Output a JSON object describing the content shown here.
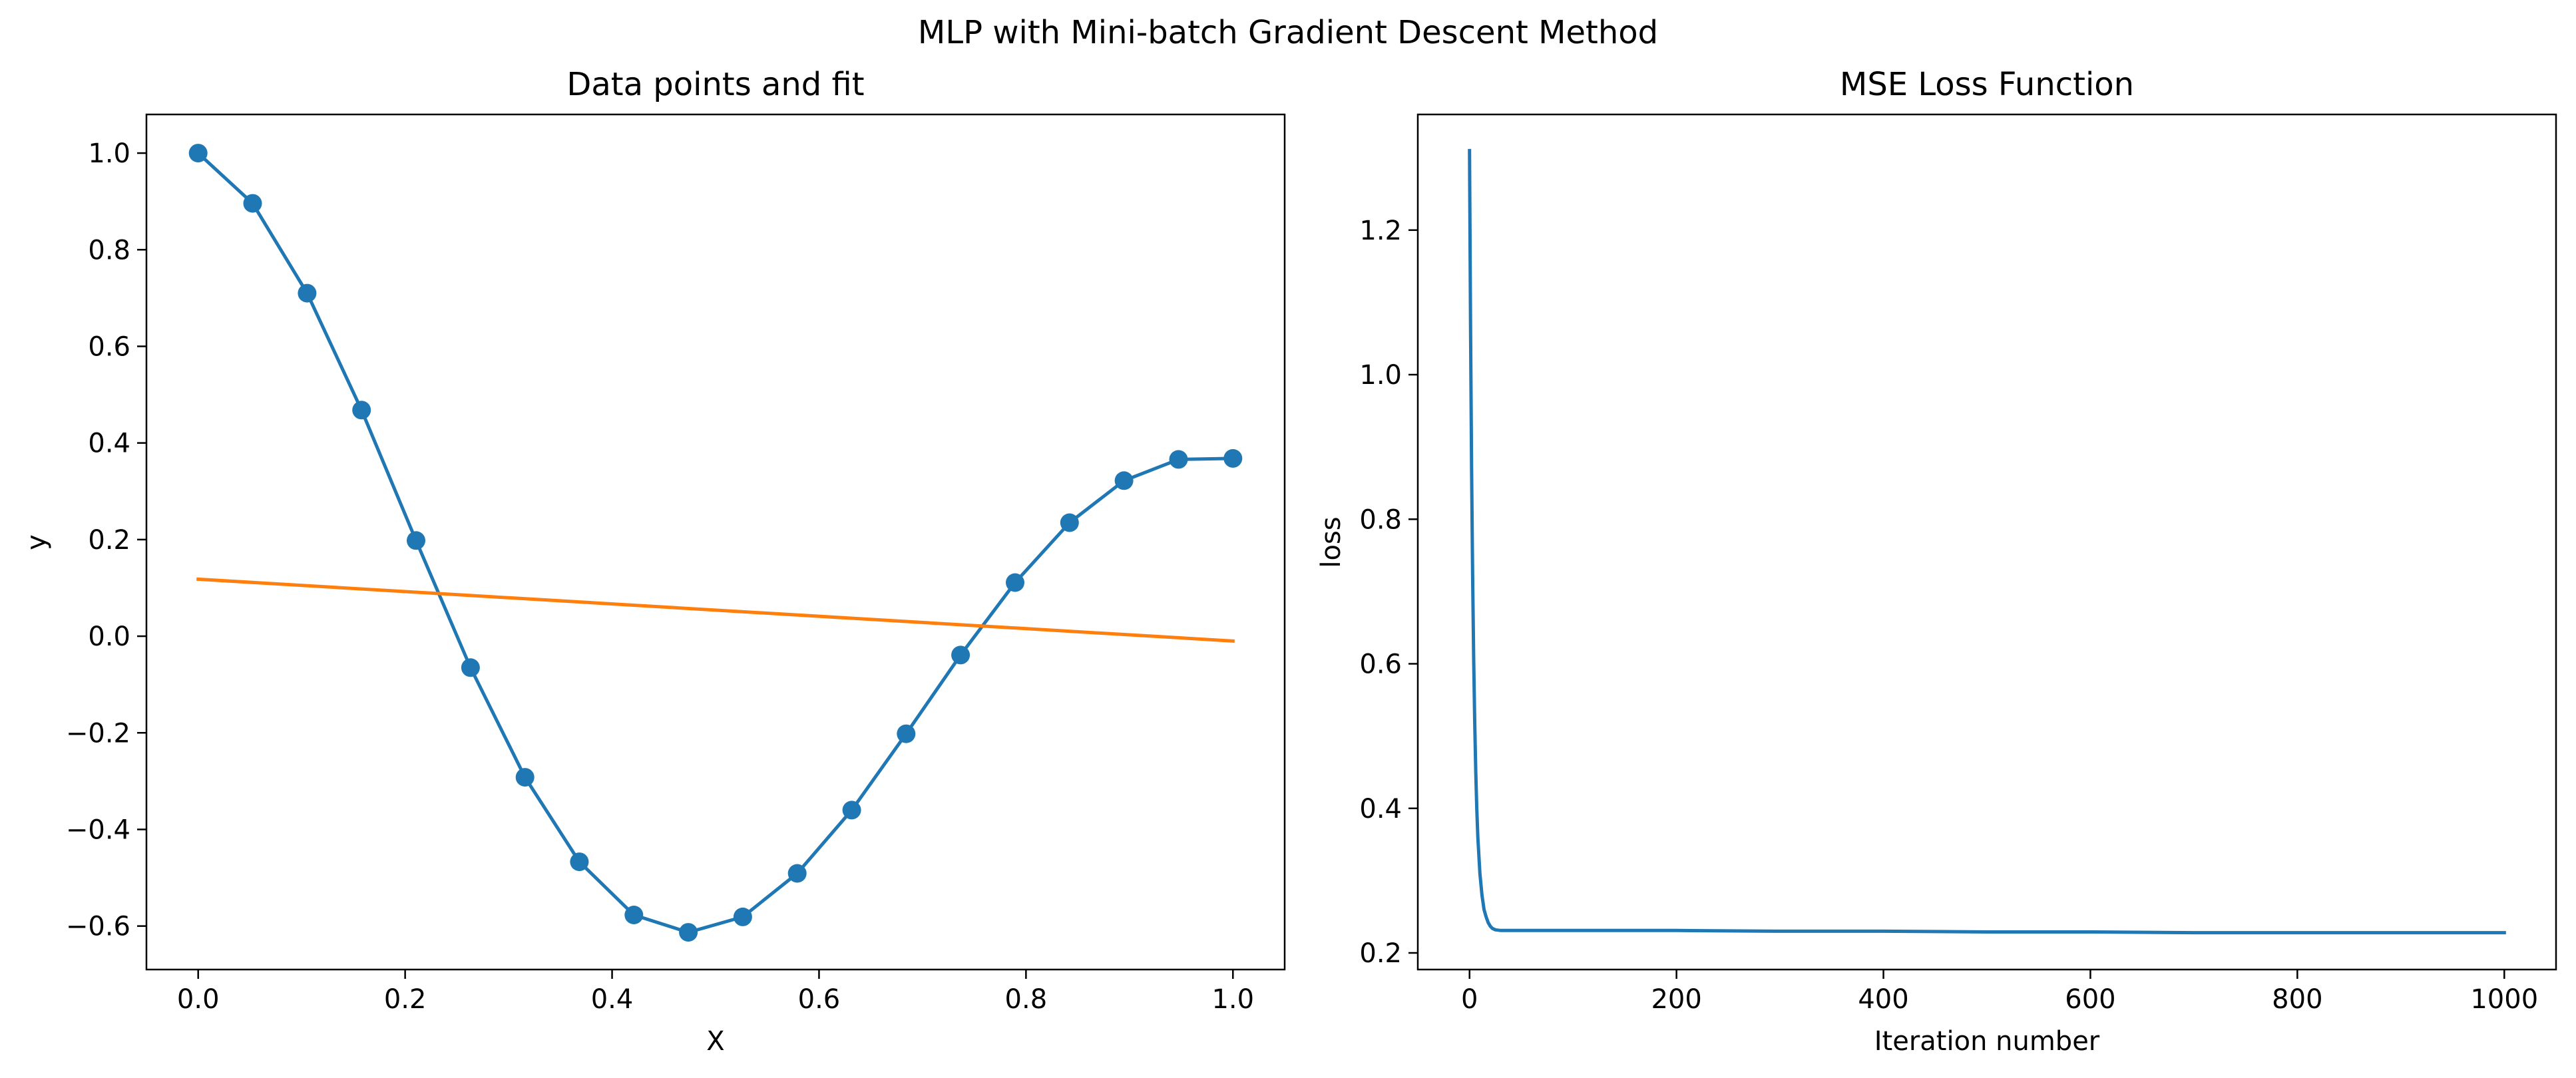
{
  "figure": {
    "suptitle": "MLP with Mini-batch Gradient Descent Method"
  },
  "chart_data": [
    {
      "type": "line",
      "title": "Data points and fit",
      "xlabel": "X",
      "ylabel": "y",
      "xlim": [
        -0.05,
        1.05
      ],
      "ylim": [
        -0.69,
        1.08
      ],
      "xticks": [
        0.0,
        0.2,
        0.4,
        0.6,
        0.8,
        1.0
      ],
      "xtick_labels": [
        "0.0",
        "0.2",
        "0.4",
        "0.6",
        "0.8",
        "1.0"
      ],
      "yticks": [
        -0.6,
        -0.4,
        -0.2,
        0.0,
        0.2,
        0.4,
        0.6,
        0.8,
        1.0
      ],
      "ytick_labels": [
        "−0.6",
        "−0.4",
        "−0.2",
        "0.0",
        "0.2",
        "0.4",
        "0.6",
        "0.8",
        "1.0"
      ],
      "grid": false,
      "series": [
        {
          "color": "#1f77b4",
          "marker": "circle",
          "x": [
            0.0,
            0.0526,
            0.1053,
            0.1579,
            0.2105,
            0.2632,
            0.3158,
            0.3684,
            0.4211,
            0.4737,
            0.5263,
            0.5789,
            0.6316,
            0.6842,
            0.7368,
            0.7895,
            0.8421,
            0.8947,
            0.9474,
            1.0
          ],
          "y": [
            1.0,
            0.896,
            0.71,
            0.468,
            0.198,
            -0.065,
            -0.292,
            -0.467,
            -0.577,
            -0.613,
            -0.581,
            -0.491,
            -0.36,
            -0.202,
            -0.039,
            0.111,
            0.235,
            0.322,
            0.366,
            0.368
          ]
        },
        {
          "color": "#ff7f0e",
          "marker": "none",
          "x": [
            0.0,
            1.0
          ],
          "y": [
            0.118,
            -0.01
          ]
        }
      ]
    },
    {
      "type": "line",
      "title": "MSE Loss Function",
      "xlabel": "Iteration number",
      "ylabel": "loss",
      "xlim": [
        -50,
        1050
      ],
      "ylim": [
        0.177,
        1.36
      ],
      "xticks": [
        0,
        200,
        400,
        600,
        800,
        1000
      ],
      "xtick_labels": [
        "0",
        "200",
        "400",
        "600",
        "800",
        "1000"
      ],
      "yticks": [
        0.2,
        0.4,
        0.6,
        0.8,
        1.0,
        1.2
      ],
      "ytick_labels": [
        "0.2",
        "0.4",
        "0.6",
        "0.8",
        "1.0",
        "1.2"
      ],
      "grid": false,
      "series": [
        {
          "color": "#1f77b4",
          "marker": "none",
          "x": [
            0,
            1,
            2,
            3,
            4,
            5,
            6,
            7,
            8,
            10,
            12,
            14,
            16,
            18,
            20,
            22,
            25,
            30,
            40,
            60,
            100,
            200,
            300,
            400,
            500,
            600,
            700,
            800,
            900,
            1000
          ],
          "y": [
            1.31,
            1.06,
            0.87,
            0.72,
            0.61,
            0.52,
            0.45,
            0.4,
            0.36,
            0.31,
            0.28,
            0.26,
            0.25,
            0.242,
            0.237,
            0.234,
            0.232,
            0.231,
            0.231,
            0.231,
            0.231,
            0.231,
            0.23,
            0.23,
            0.229,
            0.229,
            0.228,
            0.228,
            0.228,
            0.228
          ]
        }
      ]
    }
  ]
}
